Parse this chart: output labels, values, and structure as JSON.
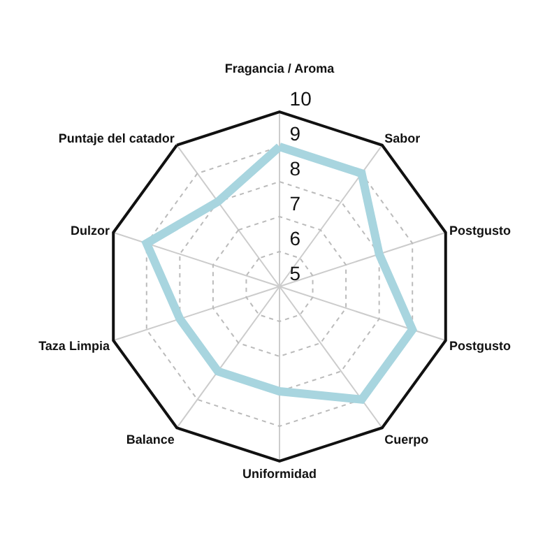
{
  "chart_data": {
    "type": "radar",
    "categories": [
      "Fragancia / Aroma",
      "Sabor",
      "Postgusto",
      "Postgusto",
      "Cuerpo",
      "Uniformidad",
      "Balance",
      "Taza Limpia",
      "Dulzor",
      "Puntaje del catador"
    ],
    "series": [
      {
        "color": "#a8d5df",
        "values": [
          9,
          9,
          8,
          9,
          9,
          8,
          8,
          8,
          9,
          8
        ]
      }
    ],
    "ylim": [
      5,
      10
    ],
    "yticks": [
      5,
      6,
      7,
      8,
      9,
      10
    ],
    "grid": true,
    "marker": "none",
    "line_style": "solid"
  }
}
